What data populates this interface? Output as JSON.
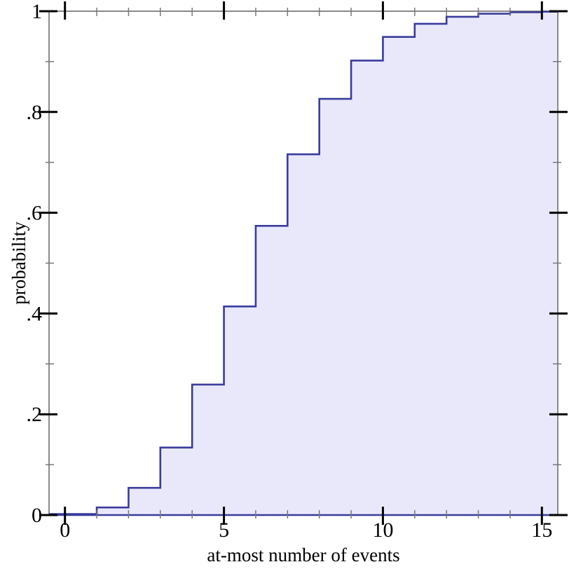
{
  "chart_data": {
    "type": "area",
    "subtype": "step-cdf",
    "title": "",
    "xlabel": "at-most number of events",
    "ylabel": "probability",
    "x": [
      0,
      1,
      2,
      3,
      4,
      5,
      6,
      7,
      8,
      9,
      10,
      11,
      12,
      13,
      14,
      15
    ],
    "values": [
      0.002,
      0.015,
      0.054,
      0.134,
      0.259,
      0.414,
      0.574,
      0.716,
      0.826,
      0.902,
      0.949,
      0.975,
      0.989,
      0.995,
      0.998,
      0.999
    ],
    "xlim": [
      -0.5,
      15.5
    ],
    "ylim": [
      0,
      1
    ],
    "grid": false,
    "legend": "none",
    "x_major_ticks": [
      {
        "value": 0,
        "label": "0"
      },
      {
        "value": 5,
        "label": "5"
      },
      {
        "value": 10,
        "label": "10"
      },
      {
        "value": 15,
        "label": "15"
      }
    ],
    "x_minor_ticks": [
      1,
      2,
      3,
      4,
      6,
      7,
      8,
      9,
      11,
      12,
      13,
      14
    ],
    "y_major_ticks": [
      {
        "value": 0,
        "label": "0"
      },
      {
        "value": 0.2,
        "label": ".2"
      },
      {
        "value": 0.4,
        "label": ".4"
      },
      {
        "value": 0.6,
        "label": ".6"
      },
      {
        "value": 0.8,
        "label": ".8"
      },
      {
        "value": 1,
        "label": "1"
      }
    ],
    "y_minor_ticks": [
      0.1,
      0.3,
      0.5,
      0.7,
      0.9
    ],
    "colors": {
      "line": "#3b3b9d",
      "fill": "#e8e8fa",
      "frame": "#8a8a8a",
      "tick_major": "#000000",
      "tick_minor": "#787878",
      "text": "#000000",
      "background": "#ffffff"
    }
  }
}
